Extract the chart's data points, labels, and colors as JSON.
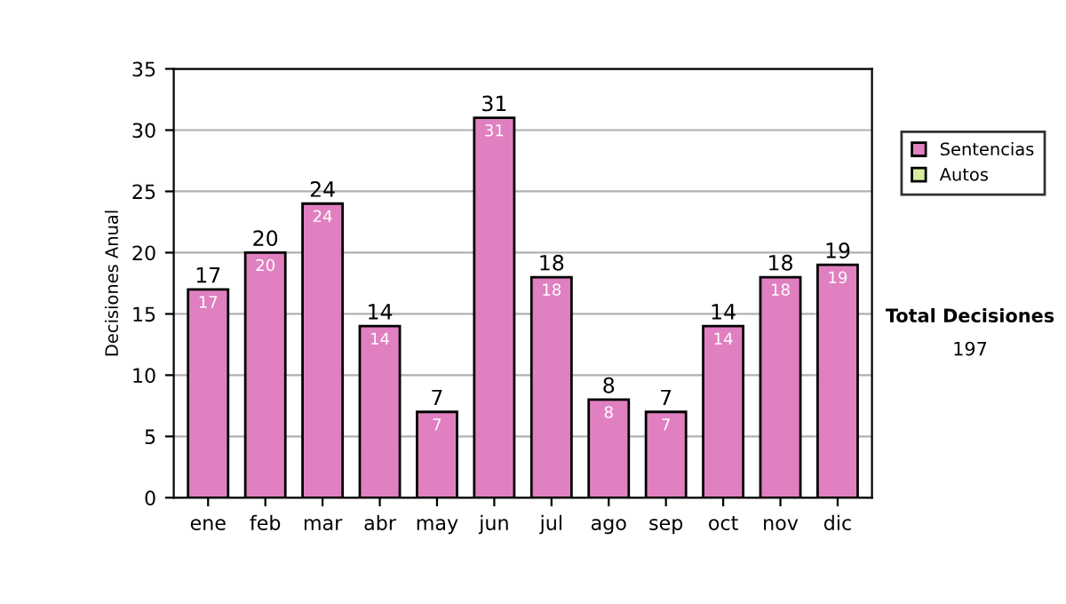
{
  "chart_data": {
    "type": "bar",
    "ylabel": "Decisiones Anual",
    "categories": [
      "ene",
      "feb",
      "mar",
      "abr",
      "may",
      "jun",
      "jul",
      "ago",
      "sep",
      "oct",
      "nov",
      "dic"
    ],
    "stacked": true,
    "series": [
      {
        "name": "Sentencias",
        "color": "#e080c0",
        "values": [
          17,
          20,
          24,
          14,
          7,
          31,
          18,
          8,
          7,
          14,
          18,
          19
        ],
        "value_labels": [
          "17",
          "20",
          "24",
          "14",
          "7",
          "31",
          "18",
          "8",
          "7",
          "14",
          "18",
          "19"
        ]
      },
      {
        "name": "Autos",
        "color": "#d8eca0",
        "values": [
          0,
          0,
          0,
          0,
          0,
          0,
          0,
          0,
          0,
          0,
          0,
          0
        ]
      }
    ],
    "totals": [
      "17",
      "20",
      "24",
      "14",
      "7",
      "31",
      "18",
      "8",
      "7",
      "14",
      "18",
      "19"
    ],
    "ylim": [
      0,
      35
    ],
    "yticks": [
      0,
      5,
      10,
      15,
      20,
      25,
      30,
      35
    ],
    "grid": "y",
    "legend": "right",
    "annotations": [
      "Total Decisiones",
      "197"
    ]
  }
}
